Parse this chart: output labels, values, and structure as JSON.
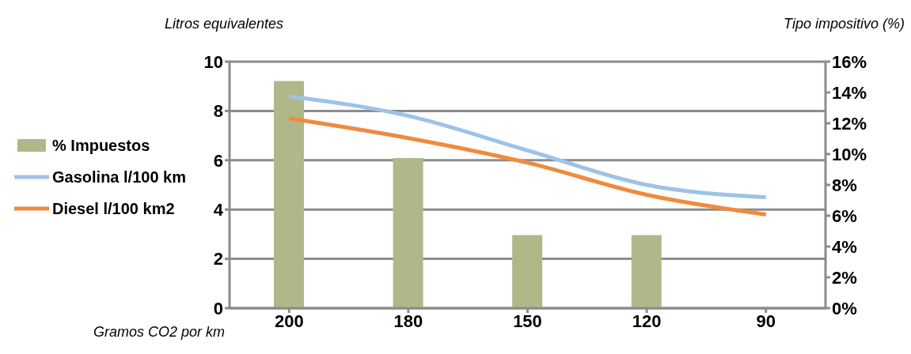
{
  "chart_data": {
    "type": "bar",
    "ylabel": "Litros equivalentes",
    "y2label": "Tipo impositivo (%)",
    "xlabel": "Gramos CO2 por km",
    "categories": [
      "200",
      "180",
      "150",
      "120",
      "90"
    ],
    "series": [
      {
        "name": "% Impuestos",
        "axis": "y2",
        "color": "#b0b88a",
        "values": [
          14.75,
          9.75,
          4.75,
          4.75,
          0
        ]
      },
      {
        "name": "Gasolina l/100 km",
        "type": "line",
        "color": "#9dc3e6",
        "values": [
          8.6,
          7.8,
          6.4,
          5.0,
          4.5
        ]
      },
      {
        "name": "Diesel l/100 km2",
        "type": "line",
        "color": "#f08a3e",
        "values": [
          7.7,
          6.9,
          5.9,
          4.6,
          3.8
        ]
      }
    ],
    "ylim": [
      0,
      10
    ],
    "yticks": [
      0,
      2,
      4,
      6,
      8,
      10
    ],
    "y2lim": [
      0,
      16
    ],
    "y2ticks": [
      {
        "value": 0,
        "label": "0%"
      },
      {
        "value": 2,
        "label": "2%"
      },
      {
        "value": 4,
        "label": "4%"
      },
      {
        "value": 6,
        "label": "6%"
      },
      {
        "value": 8,
        "label": "8%"
      },
      {
        "value": 10,
        "label": "10%"
      },
      {
        "value": 12,
        "label": "12%"
      },
      {
        "value": 14,
        "label": "14%"
      },
      {
        "value": 16,
        "label": "16%"
      }
    ],
    "grid": "y",
    "legend": "left",
    "marker": "none",
    "line_style": "solid"
  }
}
